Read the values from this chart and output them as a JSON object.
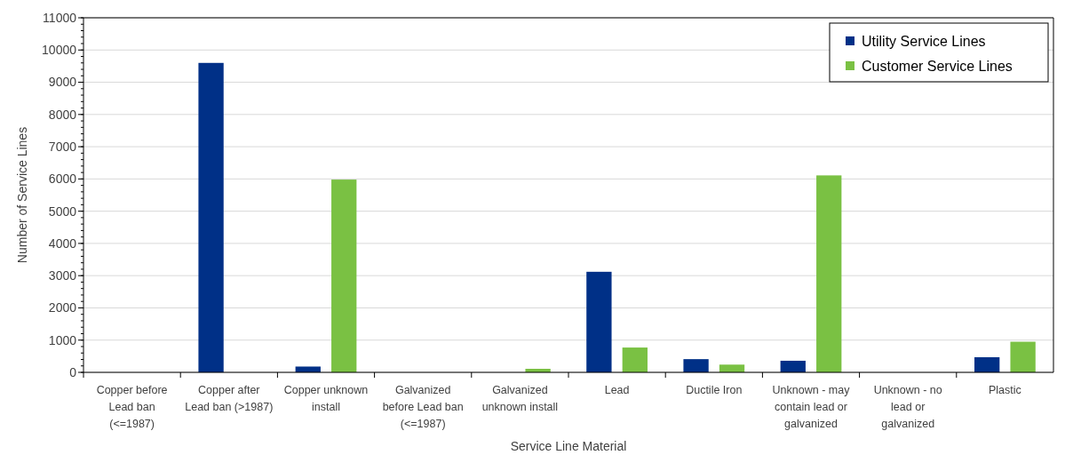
{
  "chart_data": {
    "type": "bar",
    "xlabel": "Service Line Material",
    "ylabel": "Number of Service Lines",
    "categories": [
      "Copper before Lead ban (<=1987)",
      "Copper after Lead ban (>1987)",
      "Copper unknown install",
      "Galvanized before Lead ban (<=1987)",
      "Galvanized unknown install",
      "Lead",
      "Ductile Iron",
      "Unknown - may contain lead or galvanized",
      "Unknown - no lead or galvanized",
      "Plastic"
    ],
    "series": [
      {
        "name": "Utility Service Lines",
        "color": "#003087",
        "values": [
          0,
          9600,
          180,
          0,
          0,
          3120,
          410,
          360,
          0,
          470
        ]
      },
      {
        "name": "Customer Service Lines",
        "color": "#7ac143",
        "values": [
          0,
          0,
          5980,
          0,
          110,
          770,
          240,
          6110,
          0,
          950
        ]
      }
    ],
    "ylim": [
      0,
      11000
    ],
    "yticks": [
      0,
      1000,
      2000,
      3000,
      4000,
      5000,
      6000,
      7000,
      8000,
      9000,
      10000,
      11000
    ],
    "grid": "y",
    "legend": "top right"
  }
}
